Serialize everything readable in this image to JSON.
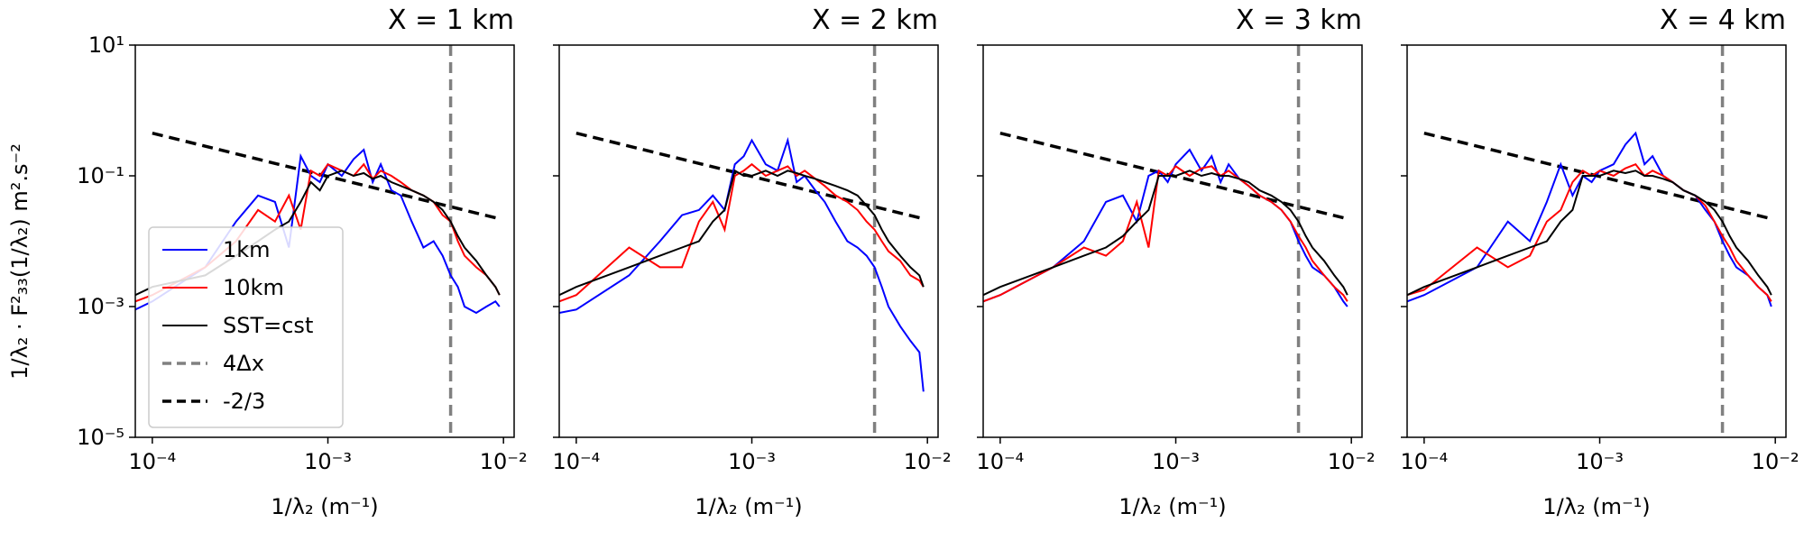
{
  "figure": {
    "ylabel": "1/λ₂ · F²₃₃(1/λ₂) m².s⁻²",
    "xlabel": "1/λ₂ (m⁻¹)"
  },
  "colors": {
    "1km": "#0000ff",
    "10km": "#ff0000",
    "SST=cst": "#000000",
    "4dx": "#808080",
    "slope": "#000000"
  },
  "legend": {
    "placement": "lower-left of first panel",
    "entries": [
      {
        "label": "1km",
        "style": "solid",
        "color": "#0000ff"
      },
      {
        "label": "10km",
        "style": "solid",
        "color": "#ff0000"
      },
      {
        "label": "SST=cst",
        "style": "solid",
        "color": "#000000"
      },
      {
        "label": "4Δx",
        "style": "dashed",
        "color": "#808080"
      },
      {
        "label": "-2/3",
        "style": "dashed",
        "color": "#000000"
      }
    ]
  },
  "chart_data": [
    {
      "type": "line",
      "title": "X = 1 km",
      "xscale": "log",
      "yscale": "log",
      "xlim": [
        8e-05,
        0.0115
      ],
      "ylim": [
        1e-05,
        10
      ],
      "xticks": [
        "10⁻⁴",
        "10⁻³",
        "10⁻²"
      ],
      "yticks": [
        "10¹",
        "10⁻¹",
        "10⁻³",
        "10⁻⁵"
      ],
      "vline_x": 0.005,
      "slope_line": {
        "x": [
          0.0001,
          0.0095
        ],
        "y": [
          0.45,
          0.022
        ]
      },
      "series": [
        {
          "name": "1km",
          "x": [
            8e-05,
            0.0001,
            0.0002,
            0.0003,
            0.0004,
            0.0005,
            0.0006,
            0.0007,
            0.0008,
            0.0009,
            0.001,
            0.0012,
            0.0014,
            0.0016,
            0.0018,
            0.002,
            0.0023,
            0.0026,
            0.003,
            0.0035,
            0.004,
            0.0045,
            0.005,
            0.0055,
            0.006,
            0.007,
            0.008,
            0.009,
            0.0095
          ],
          "y": [
            0.0009,
            0.0012,
            0.004,
            0.02,
            0.05,
            0.04,
            0.008,
            0.2,
            0.1,
            0.08,
            0.15,
            0.1,
            0.18,
            0.25,
            0.08,
            0.15,
            0.06,
            0.05,
            0.02,
            0.008,
            0.01,
            0.006,
            0.003,
            0.002,
            0.001,
            0.0008,
            0.001,
            0.0012,
            0.001
          ]
        },
        {
          "name": "10km",
          "x": [
            8e-05,
            0.0001,
            0.0002,
            0.0003,
            0.0004,
            0.0005,
            0.0006,
            0.0007,
            0.0008,
            0.0009,
            0.001,
            0.0012,
            0.0014,
            0.0016,
            0.0018,
            0.002,
            0.0023,
            0.0026,
            0.003,
            0.0035,
            0.004,
            0.0045,
            0.005,
            0.0055,
            0.006,
            0.007,
            0.008,
            0.009,
            0.0095
          ],
          "y": [
            0.0012,
            0.0015,
            0.004,
            0.01,
            0.03,
            0.02,
            0.05,
            0.015,
            0.12,
            0.1,
            0.15,
            0.12,
            0.1,
            0.15,
            0.09,
            0.12,
            0.1,
            0.08,
            0.06,
            0.05,
            0.04,
            0.025,
            0.02,
            0.01,
            0.006,
            0.004,
            0.003,
            0.002,
            0.0015
          ]
        },
        {
          "name": "SST=cst",
          "x": [
            8e-05,
            0.0001,
            0.0002,
            0.0003,
            0.0004,
            0.0005,
            0.0006,
            0.0007,
            0.0008,
            0.0009,
            0.001,
            0.0012,
            0.0014,
            0.0016,
            0.0018,
            0.002,
            0.0023,
            0.0026,
            0.003,
            0.0035,
            0.004,
            0.0045,
            0.005,
            0.0055,
            0.006,
            0.007,
            0.008,
            0.009,
            0.0095
          ],
          "y": [
            0.0015,
            0.002,
            0.003,
            0.006,
            0.01,
            0.015,
            0.02,
            0.04,
            0.08,
            0.06,
            0.1,
            0.12,
            0.1,
            0.11,
            0.09,
            0.1,
            0.08,
            0.07,
            0.06,
            0.05,
            0.04,
            0.03,
            0.02,
            0.012,
            0.008,
            0.005,
            0.003,
            0.002,
            0.0015
          ]
        }
      ]
    },
    {
      "type": "line",
      "title": "X = 2 km",
      "xscale": "log",
      "yscale": "log",
      "xlim": [
        8e-05,
        0.0115
      ],
      "ylim": [
        1e-05,
        10
      ],
      "xticks": [
        "10⁻⁴",
        "10⁻³",
        "10⁻²"
      ],
      "yticks": [],
      "vline_x": 0.005,
      "slope_line": {
        "x": [
          0.0001,
          0.0095
        ],
        "y": [
          0.45,
          0.022
        ]
      },
      "series": [
        {
          "name": "1km",
          "x": [
            8e-05,
            0.0001,
            0.0002,
            0.0003,
            0.0004,
            0.0005,
            0.0006,
            0.0007,
            0.0008,
            0.0009,
            0.001,
            0.0012,
            0.0014,
            0.0016,
            0.0018,
            0.002,
            0.0023,
            0.0026,
            0.003,
            0.0035,
            0.004,
            0.0045,
            0.005,
            0.0055,
            0.006,
            0.007,
            0.008,
            0.009,
            0.0095
          ],
          "y": [
            0.0008,
            0.0009,
            0.003,
            0.01,
            0.025,
            0.03,
            0.05,
            0.03,
            0.15,
            0.2,
            0.35,
            0.15,
            0.12,
            0.35,
            0.08,
            0.1,
            0.06,
            0.04,
            0.02,
            0.01,
            0.008,
            0.006,
            0.004,
            0.002,
            0.001,
            0.0005,
            0.0003,
            0.0002,
            5e-05
          ]
        },
        {
          "name": "10km",
          "x": [
            8e-05,
            0.0001,
            0.0002,
            0.0003,
            0.0004,
            0.0005,
            0.0006,
            0.0007,
            0.0008,
            0.0009,
            0.001,
            0.0012,
            0.0014,
            0.0016,
            0.0018,
            0.002,
            0.0023,
            0.0026,
            0.003,
            0.0035,
            0.004,
            0.0045,
            0.005,
            0.0055,
            0.006,
            0.007,
            0.008,
            0.009,
            0.0095
          ],
          "y": [
            0.0012,
            0.0015,
            0.008,
            0.004,
            0.004,
            0.02,
            0.04,
            0.015,
            0.1,
            0.12,
            0.15,
            0.1,
            0.12,
            0.14,
            0.1,
            0.12,
            0.09,
            0.07,
            0.05,
            0.04,
            0.03,
            0.02,
            0.015,
            0.01,
            0.007,
            0.005,
            0.003,
            0.0025,
            0.002
          ]
        },
        {
          "name": "SST=cst",
          "x": [
            8e-05,
            0.0001,
            0.0002,
            0.0003,
            0.0004,
            0.0005,
            0.0006,
            0.0007,
            0.0008,
            0.0009,
            0.001,
            0.0012,
            0.0014,
            0.0016,
            0.0018,
            0.002,
            0.0023,
            0.0026,
            0.003,
            0.0035,
            0.004,
            0.0045,
            0.005,
            0.0055,
            0.006,
            0.007,
            0.008,
            0.009,
            0.0095
          ],
          "y": [
            0.0015,
            0.002,
            0.004,
            0.006,
            0.008,
            0.01,
            0.02,
            0.03,
            0.12,
            0.1,
            0.1,
            0.12,
            0.1,
            0.12,
            0.11,
            0.1,
            0.09,
            0.08,
            0.07,
            0.06,
            0.05,
            0.035,
            0.025,
            0.015,
            0.01,
            0.006,
            0.004,
            0.003,
            0.002
          ]
        }
      ]
    },
    {
      "type": "line",
      "title": "X = 3 km",
      "xscale": "log",
      "yscale": "log",
      "xlim": [
        8e-05,
        0.0115
      ],
      "ylim": [
        1e-05,
        10
      ],
      "xticks": [
        "10⁻⁴",
        "10⁻³",
        "10⁻²"
      ],
      "yticks": [],
      "vline_x": 0.005,
      "slope_line": {
        "x": [
          0.0001,
          0.0095
        ],
        "y": [
          0.45,
          0.022
        ]
      },
      "series": [
        {
          "name": "1km",
          "x": [
            8e-05,
            0.0001,
            0.0002,
            0.0003,
            0.0004,
            0.0005,
            0.0006,
            0.0007,
            0.0008,
            0.0009,
            0.001,
            0.0012,
            0.0014,
            0.0016,
            0.0018,
            0.002,
            0.0023,
            0.0026,
            0.003,
            0.0035,
            0.004,
            0.0045,
            0.005,
            0.0055,
            0.006,
            0.007,
            0.008,
            0.009,
            0.0095
          ],
          "y": [
            0.0012,
            0.0015,
            0.004,
            0.01,
            0.04,
            0.05,
            0.02,
            0.1,
            0.12,
            0.08,
            0.15,
            0.25,
            0.12,
            0.2,
            0.08,
            0.15,
            0.09,
            0.07,
            0.05,
            0.04,
            0.03,
            0.02,
            0.01,
            0.006,
            0.004,
            0.003,
            0.002,
            0.0012,
            0.001
          ]
        },
        {
          "name": "10km",
          "x": [
            8e-05,
            0.0001,
            0.0002,
            0.0003,
            0.0004,
            0.0005,
            0.0006,
            0.0007,
            0.0008,
            0.0009,
            0.001,
            0.0012,
            0.0014,
            0.0016,
            0.0018,
            0.002,
            0.0023,
            0.0026,
            0.003,
            0.0035,
            0.004,
            0.0045,
            0.005,
            0.0055,
            0.006,
            0.007,
            0.008,
            0.009,
            0.0095
          ],
          "y": [
            0.0012,
            0.0015,
            0.004,
            0.008,
            0.006,
            0.01,
            0.04,
            0.008,
            0.12,
            0.1,
            0.14,
            0.1,
            0.13,
            0.14,
            0.1,
            0.12,
            0.09,
            0.07,
            0.05,
            0.04,
            0.03,
            0.02,
            0.012,
            0.008,
            0.005,
            0.003,
            0.002,
            0.0015,
            0.0012
          ]
        },
        {
          "name": "SST=cst",
          "x": [
            8e-05,
            0.0001,
            0.0002,
            0.0003,
            0.0004,
            0.0005,
            0.0006,
            0.0007,
            0.0008,
            0.0009,
            0.001,
            0.0012,
            0.0014,
            0.0016,
            0.0018,
            0.002,
            0.0023,
            0.0026,
            0.003,
            0.0035,
            0.004,
            0.0045,
            0.005,
            0.0055,
            0.006,
            0.007,
            0.008,
            0.009,
            0.0095
          ],
          "y": [
            0.0015,
            0.002,
            0.004,
            0.006,
            0.008,
            0.012,
            0.02,
            0.03,
            0.1,
            0.1,
            0.1,
            0.12,
            0.1,
            0.11,
            0.1,
            0.1,
            0.09,
            0.08,
            0.06,
            0.05,
            0.04,
            0.03,
            0.02,
            0.012,
            0.008,
            0.005,
            0.003,
            0.002,
            0.0015
          ]
        }
      ]
    },
    {
      "type": "line",
      "title": "X = 4 km",
      "xscale": "log",
      "yscale": "log",
      "xlim": [
        8e-05,
        0.0115
      ],
      "ylim": [
        1e-05,
        10
      ],
      "xticks": [
        "10⁻⁴",
        "10⁻³",
        "10⁻²"
      ],
      "yticks": [],
      "vline_x": 0.005,
      "slope_line": {
        "x": [
          0.0001,
          0.0095
        ],
        "y": [
          0.45,
          0.022
        ]
      },
      "series": [
        {
          "name": "1km",
          "x": [
            8e-05,
            0.0001,
            0.0002,
            0.0003,
            0.0004,
            0.0005,
            0.0006,
            0.0007,
            0.0008,
            0.0009,
            0.001,
            0.0012,
            0.0014,
            0.0016,
            0.0018,
            0.002,
            0.0023,
            0.0026,
            0.003,
            0.0035,
            0.004,
            0.0045,
            0.005,
            0.0055,
            0.006,
            0.007,
            0.008,
            0.009,
            0.0095
          ],
          "y": [
            0.0012,
            0.0015,
            0.004,
            0.02,
            0.01,
            0.04,
            0.15,
            0.05,
            0.1,
            0.08,
            0.12,
            0.15,
            0.3,
            0.45,
            0.15,
            0.2,
            0.1,
            0.08,
            0.06,
            0.05,
            0.03,
            0.02,
            0.01,
            0.006,
            0.004,
            0.003,
            0.002,
            0.0015,
            0.001
          ]
        },
        {
          "name": "10km",
          "x": [
            8e-05,
            0.0001,
            0.0002,
            0.0003,
            0.0004,
            0.0005,
            0.0006,
            0.0007,
            0.0008,
            0.0009,
            0.001,
            0.0012,
            0.0014,
            0.0016,
            0.0018,
            0.002,
            0.0023,
            0.0026,
            0.003,
            0.0035,
            0.004,
            0.0045,
            0.005,
            0.0055,
            0.006,
            0.007,
            0.008,
            0.009,
            0.0095
          ],
          "y": [
            0.0015,
            0.0018,
            0.008,
            0.004,
            0.006,
            0.02,
            0.03,
            0.08,
            0.12,
            0.1,
            0.12,
            0.1,
            0.13,
            0.15,
            0.1,
            0.12,
            0.1,
            0.08,
            0.06,
            0.05,
            0.035,
            0.02,
            0.012,
            0.008,
            0.005,
            0.003,
            0.002,
            0.0015,
            0.0012
          ]
        },
        {
          "name": "SST=cst",
          "x": [
            8e-05,
            0.0001,
            0.0002,
            0.0003,
            0.0004,
            0.0005,
            0.0006,
            0.0007,
            0.0008,
            0.0009,
            0.001,
            0.0012,
            0.0014,
            0.0016,
            0.0018,
            0.002,
            0.0023,
            0.0026,
            0.003,
            0.0035,
            0.004,
            0.0045,
            0.005,
            0.0055,
            0.006,
            0.007,
            0.008,
            0.009,
            0.0095
          ],
          "y": [
            0.0015,
            0.002,
            0.004,
            0.006,
            0.008,
            0.01,
            0.02,
            0.03,
            0.1,
            0.1,
            0.1,
            0.12,
            0.11,
            0.12,
            0.1,
            0.1,
            0.09,
            0.08,
            0.06,
            0.05,
            0.04,
            0.03,
            0.02,
            0.012,
            0.008,
            0.005,
            0.003,
            0.002,
            0.0015
          ]
        }
      ]
    }
  ]
}
